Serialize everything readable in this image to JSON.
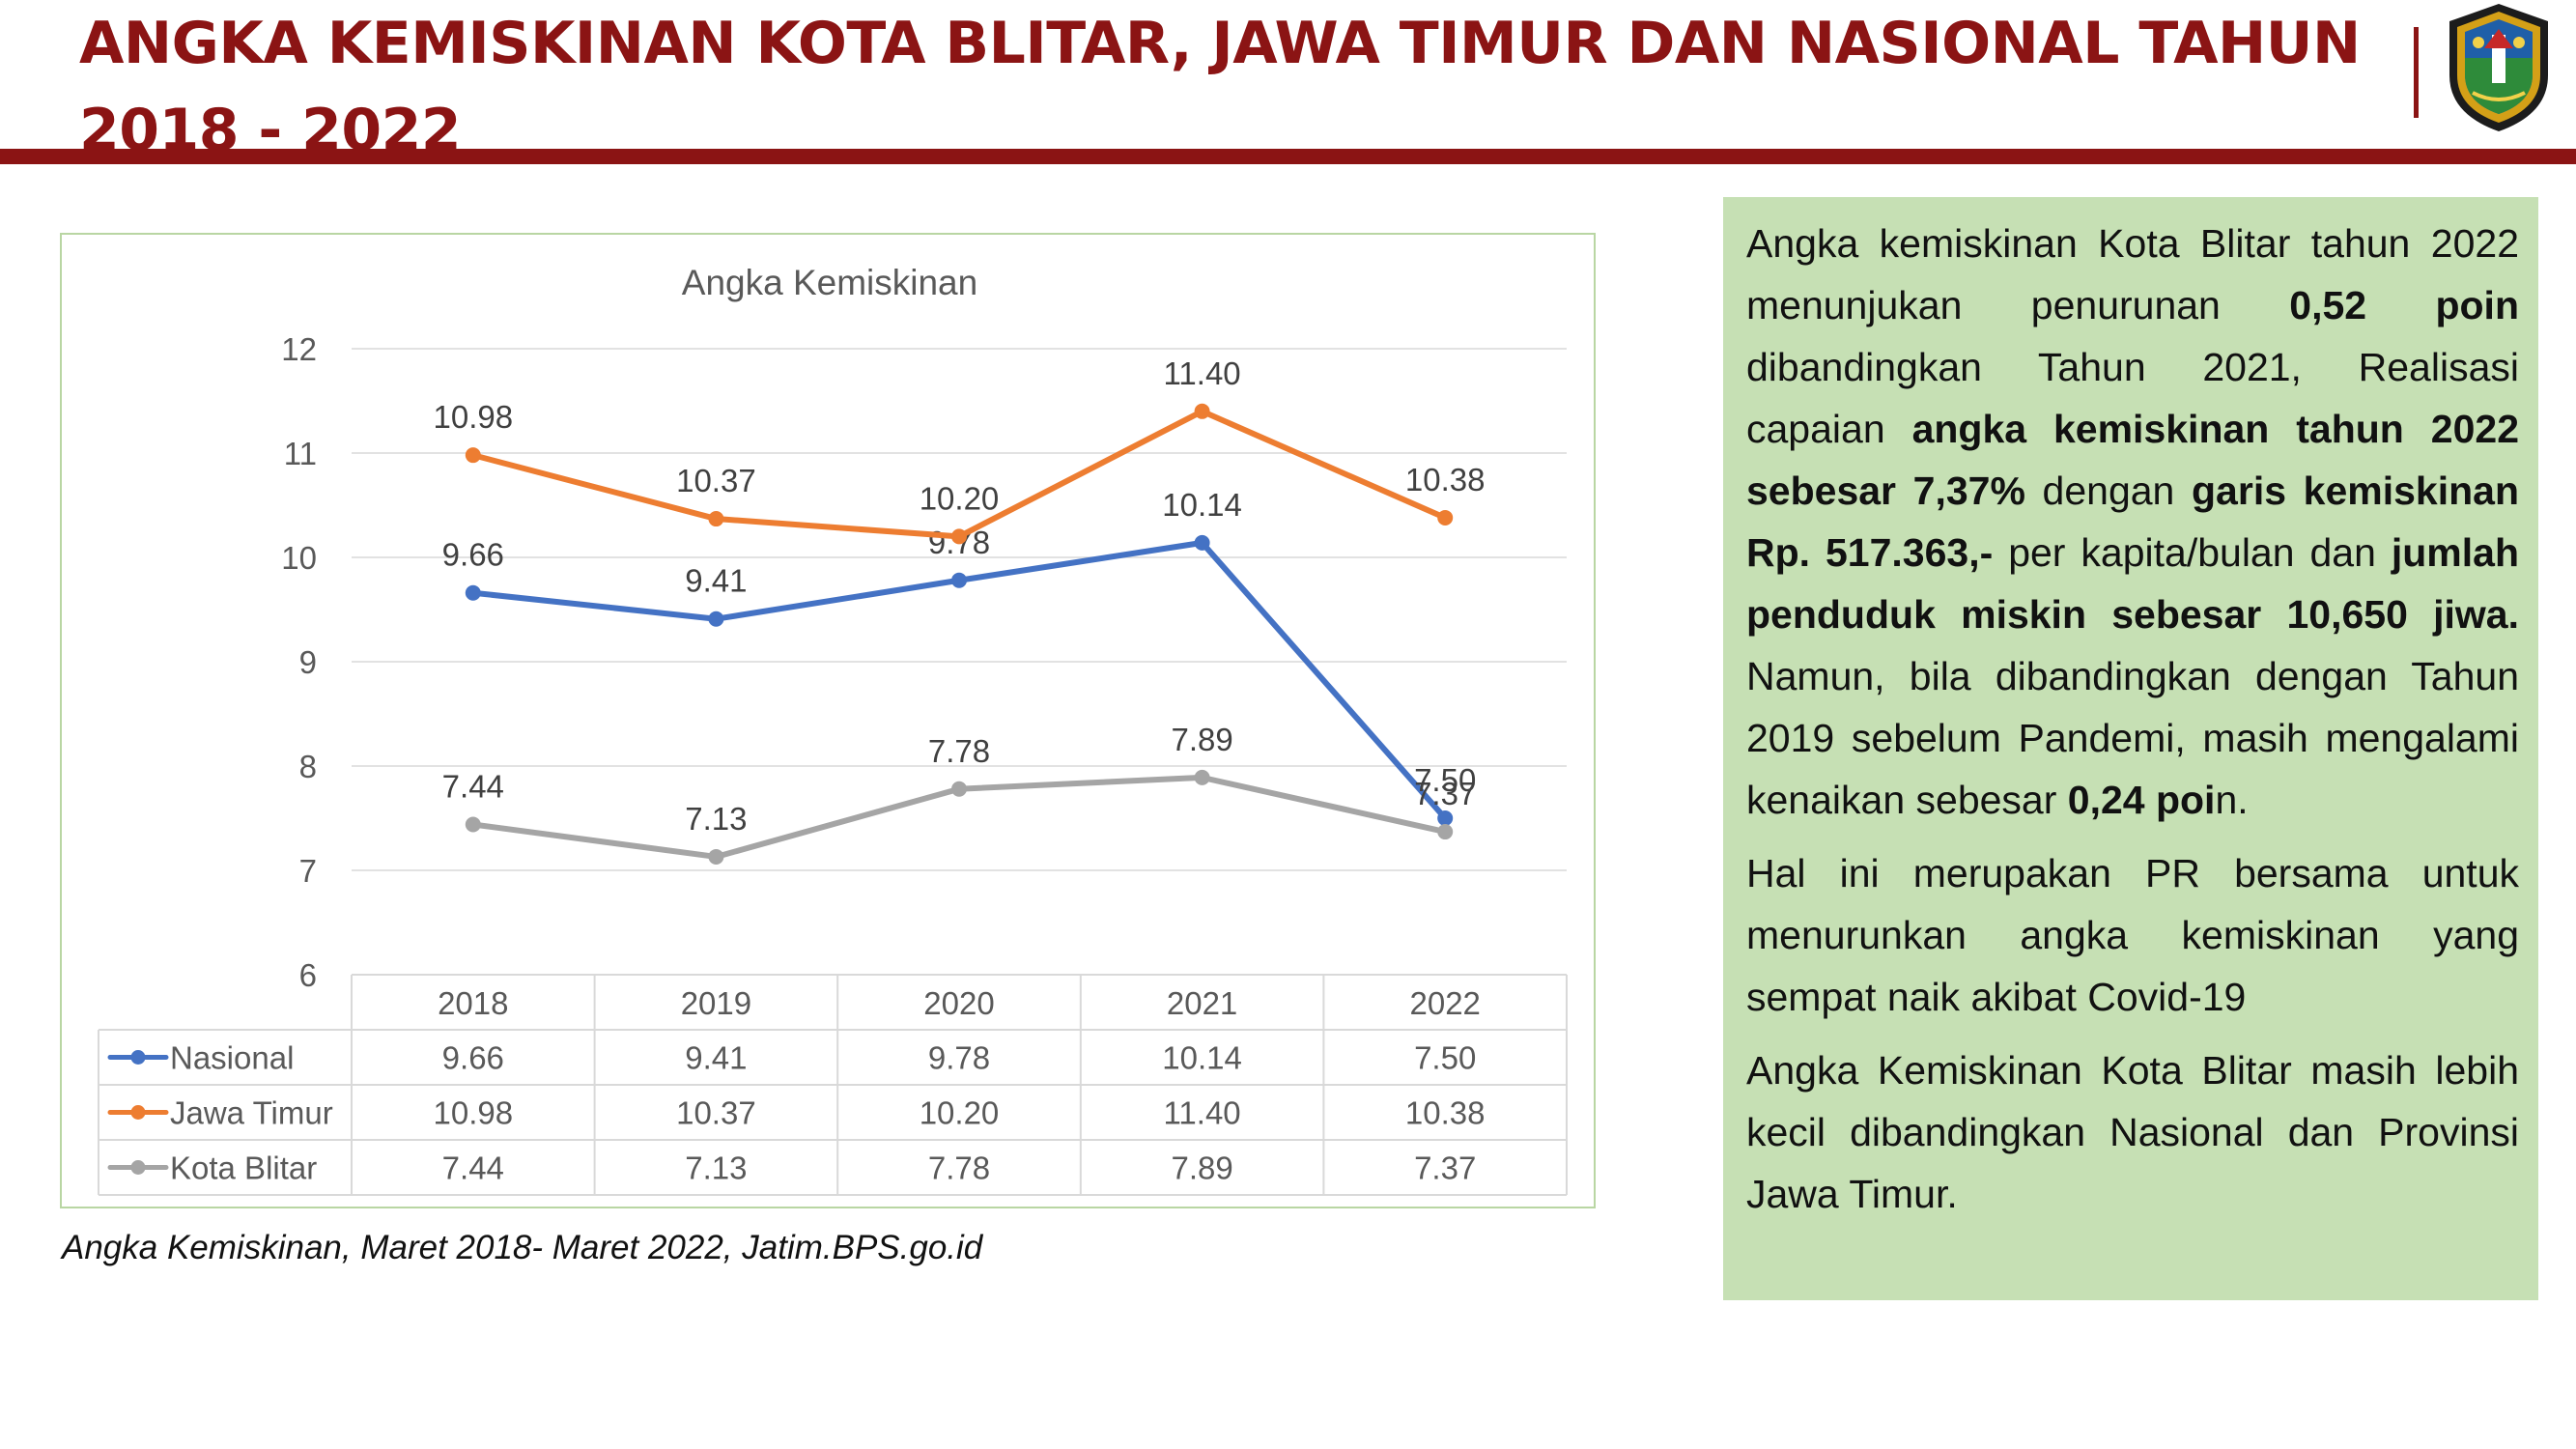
{
  "header": {
    "title": "ANGKA KEMISKINAN KOTA BLITAR, JAWA TIMUR DAN NASIONAL TAHUN 2018 - 2022"
  },
  "colors": {
    "brand": "#8b1414",
    "panel_bg": "#c6e0b4",
    "nasional": "#4472c4",
    "jawa_timur": "#ed7d31",
    "kota_blitar": "#a5a5a5"
  },
  "chart_data": {
    "type": "line",
    "title": "Angka Kemiskinan",
    "categories": [
      "2018",
      "2019",
      "2020",
      "2021",
      "2022"
    ],
    "series": [
      {
        "name": "Nasional",
        "values": [
          9.66,
          9.41,
          9.78,
          10.14,
          7.5
        ],
        "labels": [
          "9.66",
          "9.41",
          "9.78",
          "10.14",
          "7.50"
        ],
        "color": "#4472c4"
      },
      {
        "name": "Jawa Timur",
        "values": [
          10.98,
          10.37,
          10.2,
          11.4,
          10.38
        ],
        "labels": [
          "10.98",
          "10.37",
          "10.20",
          "11.40",
          "10.38"
        ],
        "color": "#ed7d31"
      },
      {
        "name": "Kota Blitar",
        "values": [
          7.44,
          7.13,
          7.78,
          7.89,
          7.37
        ],
        "labels": [
          "7.44",
          "7.13",
          "7.78",
          "7.89",
          "7.37"
        ],
        "color": "#a5a5a5"
      }
    ],
    "ylim": [
      6,
      12
    ],
    "yticks": [
      "6",
      "7",
      "8",
      "9",
      "10",
      "11",
      "12"
    ],
    "grid": true,
    "legend": "data-table"
  },
  "caption": "Angka Kemiskinan, Maret 2018- Maret 2022, Jatim.BPS.go.id",
  "panel": {
    "p1": [
      {
        "t": "Angka kemiskinan Kota Blitar tahun 2022 menunjukan penurunan ",
        "b": false
      },
      {
        "t": "0,52 poin",
        "b": true
      },
      {
        "t": " dibandingkan Tahun 2021, Realisasi capaian ",
        "b": false
      },
      {
        "t": "angka kemiskinan tahun 2022 sebesar 7,37%",
        "b": true
      },
      {
        "t": " dengan ",
        "b": false
      },
      {
        "t": "garis kemiskinan  Rp. 517.363,-",
        "b": true
      },
      {
        "t": " per kapita/bulan dan ",
        "b": false
      },
      {
        "t": "jumlah penduduk miskin sebesar 10,650 jiwa.",
        "b": true
      },
      {
        "t": " Namun, bila dibandingkan dengan Tahun 2019 sebelum Pandemi, masih mengalami kenaikan sebesar ",
        "b": false
      },
      {
        "t": "0,24 poi",
        "b": true
      },
      {
        "t": "n.",
        "b": false
      }
    ],
    "p2": "Hal ini merupakan PR bersama untuk menurunkan angka kemiskinan yang sempat naik akibat Covid-19",
    "p3": "Angka Kemiskinan Kota Blitar masih lebih kecil dibandingkan Nasional dan Provinsi Jawa Timur."
  }
}
